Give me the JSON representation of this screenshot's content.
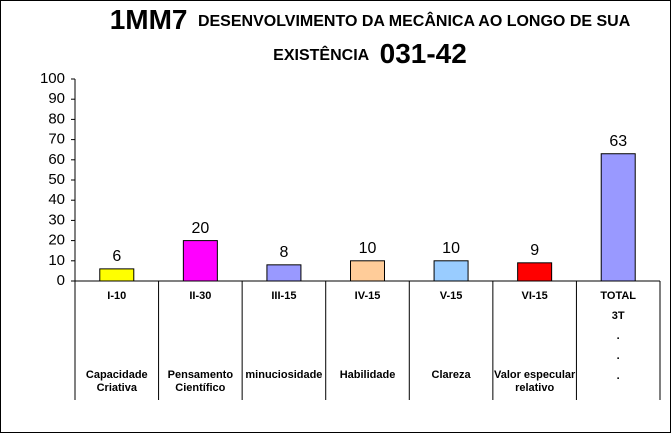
{
  "chart_data": {
    "type": "bar",
    "title": {
      "code": "1MM7",
      "line1": "DESENVOLVIMENTO DA MECÂNICA AO LONGO DE SUA",
      "line2": "EXISTÊNCIA",
      "number": "031-42"
    },
    "categories": [
      "I-10",
      "II-30",
      "III-15",
      "IV-15",
      "V-15",
      "VI-15",
      "TOTAL"
    ],
    "descriptions": [
      [
        "Capacidade",
        "Criativa"
      ],
      [
        "Pensamento",
        "Científico"
      ],
      [
        "minuciosidade"
      ],
      [
        "Habilidade"
      ],
      [
        "Clareza"
      ],
      [
        "Valor especular",
        "relativo"
      ],
      null
    ],
    "total_notes": [
      "3T",
      ".",
      ".",
      "."
    ],
    "values": [
      6,
      20,
      8,
      10,
      10,
      9,
      63
    ],
    "colors": [
      "#ffff00",
      "#ff00ff",
      "#9999ff",
      "#ffcc99",
      "#99ccff",
      "#ff0000",
      "#9999ff"
    ],
    "ylim": [
      0,
      100
    ],
    "yticks": [
      0,
      10,
      20,
      30,
      40,
      50,
      60,
      70,
      80,
      90,
      100
    ]
  }
}
